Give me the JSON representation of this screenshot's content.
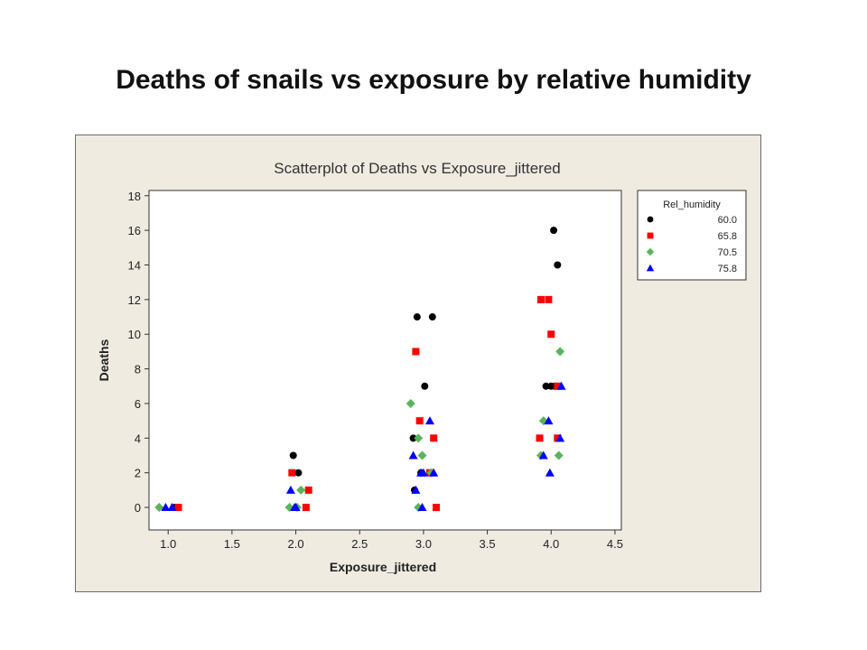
{
  "slide": {
    "title": "Deaths of snails vs exposure by relative humidity"
  },
  "chart_data": {
    "type": "scatter",
    "title": "Scatterplot of Deaths vs Exposure_jittered",
    "xlabel": "Exposure_jittered",
    "ylabel": "Deaths",
    "xlim": [
      0.85,
      4.55
    ],
    "ylim": [
      -1.3,
      18.3
    ],
    "xticks": [
      "1.0",
      "1.5",
      "2.0",
      "2.5",
      "3.0",
      "3.5",
      "4.0",
      "4.5"
    ],
    "yticks": [
      "0",
      "2",
      "4",
      "6",
      "8",
      "10",
      "12",
      "14",
      "16",
      "18"
    ],
    "grid": false,
    "legend": {
      "title": "Rel_humidity",
      "position": "right"
    },
    "series": [
      {
        "name": "60.0",
        "marker": "circle",
        "color": "#000000",
        "x": [
          1.05,
          1.98,
          2.02,
          2.95,
          3.07,
          3.01,
          2.92,
          2.98,
          2.93,
          4.02,
          4.05,
          3.96,
          4.0,
          4.03
        ],
        "y": [
          0,
          3,
          2,
          11,
          11,
          7,
          4,
          2,
          1,
          16,
          14,
          7,
          7,
          7
        ]
      },
      {
        "name": "65.8",
        "marker": "square",
        "color": "#ff0000",
        "x": [
          1.08,
          1.97,
          2.1,
          2.08,
          2.94,
          2.97,
          3.08,
          3.05,
          3.1,
          3.92,
          3.98,
          4.0,
          3.91,
          4.05,
          4.05
        ],
        "y": [
          0,
          2,
          1,
          0,
          9,
          5,
          4,
          2,
          0,
          12,
          12,
          10,
          4,
          4,
          7
        ]
      },
      {
        "name": "70.5",
        "marker": "diamond",
        "color": "#5ab45a",
        "x": [
          0.93,
          1.95,
          2.04,
          2.01,
          2.9,
          2.96,
          2.99,
          3.06,
          2.96,
          4.07,
          3.94,
          3.92,
          4.06
        ],
        "y": [
          0,
          0,
          1,
          0,
          6,
          4,
          3,
          2,
          0,
          9,
          5,
          3,
          3
        ]
      },
      {
        "name": "75.8",
        "marker": "triangle",
        "color": "#0000ff",
        "x": [
          0.98,
          1.03,
          1.96,
          1.99,
          2.0,
          2.92,
          2.94,
          3.05,
          2.98,
          2.99,
          3.08,
          3.0,
          3.98,
          3.94,
          4.08,
          3.99,
          4.07
        ],
        "y": [
          0,
          0,
          1,
          0,
          0,
          3,
          1,
          5,
          2,
          0,
          2,
          2,
          5,
          3,
          7,
          2,
          4
        ]
      }
    ]
  }
}
